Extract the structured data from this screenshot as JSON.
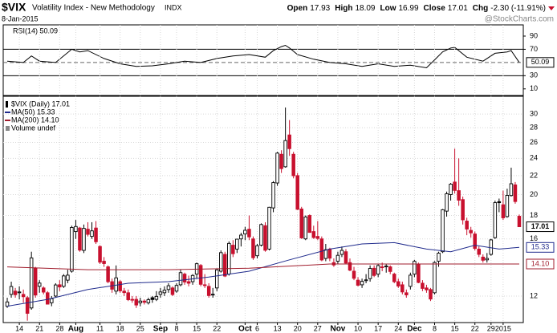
{
  "chart_data": {
    "type": "candlestick",
    "title": "$VIX",
    "subtitle": "Volatility Index - New Methodology",
    "exchange": "INDX",
    "date": "8-Jan-2015",
    "watermark": "@StockCharts.com",
    "quote": [
      {
        "label": "Open",
        "value": "17.93"
      },
      {
        "label": "High",
        "value": "18.09"
      },
      {
        "label": "Low",
        "value": "16.99"
      },
      {
        "label": "Close",
        "value": "17.01"
      },
      {
        "label": "Chg",
        "value": "-2.30 (-11.91%)"
      }
    ],
    "legend": [
      "$VIX (Daily) 17.01",
      "Volume undef"
    ],
    "last_label": "17.01",
    "grid": true,
    "log_scale": true,
    "up_color": "#000000",
    "down_color": "#c8102e",
    "xlim": [
      -1,
      128
    ],
    "xticks": [
      {
        "value": 3,
        "label": "14"
      },
      {
        "value": 8,
        "label": "21"
      },
      {
        "value": 13,
        "label": "28"
      },
      {
        "value": 17,
        "label": "Aug"
      },
      {
        "value": 23,
        "label": "11"
      },
      {
        "value": 28,
        "label": "18"
      },
      {
        "value": 33,
        "label": "25"
      },
      {
        "value": 38,
        "label": "Sep"
      },
      {
        "value": 42,
        "label": "8"
      },
      {
        "value": 47,
        "label": "15"
      },
      {
        "value": 52,
        "label": "22"
      },
      {
        "value": 59,
        "label": "Oct"
      },
      {
        "value": 62,
        "label": "6"
      },
      {
        "value": 67,
        "label": "13"
      },
      {
        "value": 72,
        "label": "20"
      },
      {
        "value": 77,
        "label": "27"
      },
      {
        "value": 82,
        "label": "Nov"
      },
      {
        "value": 87,
        "label": "10"
      },
      {
        "value": 92,
        "label": "17"
      },
      {
        "value": 97,
        "label": "24"
      },
      {
        "value": 101,
        "label": "Dec"
      },
      {
        "value": 106,
        "label": "8"
      },
      {
        "value": 111,
        "label": "15"
      },
      {
        "value": 116,
        "label": "22"
      },
      {
        "value": 120,
        "label": "29"
      },
      {
        "value": 123,
        "label": "2015"
      }
    ],
    "ylim": [
      10.5,
      32.8
    ],
    "yticks": [
      12,
      16,
      18,
      20,
      22,
      24,
      26,
      28,
      30
    ],
    "ohlc": [
      [
        11.4,
        11.9,
        11.3,
        11.65
      ],
      [
        12.1,
        12.9,
        11.9,
        12.59
      ],
      [
        12.3,
        12.5,
        11.9,
        12.08
      ],
      [
        12.2,
        12.6,
        11.8,
        12.25
      ],
      [
        12.1,
        12.4,
        11.6,
        11.96
      ],
      [
        11.9,
        12.0,
        10.6,
        11.0
      ],
      [
        11.3,
        15.0,
        11.2,
        14.54
      ],
      [
        13.8,
        13.9,
        11.9,
        12.06
      ],
      [
        12.6,
        13.0,
        12.2,
        12.81
      ],
      [
        12.5,
        12.6,
        12.1,
        12.24
      ],
      [
        12.2,
        12.3,
        11.5,
        11.52
      ],
      [
        11.6,
        12.0,
        11.4,
        11.84
      ],
      [
        12.0,
        12.8,
        11.9,
        12.69
      ],
      [
        12.7,
        13.0,
        12.3,
        12.56
      ],
      [
        12.6,
        13.4,
        12.5,
        13.28
      ],
      [
        13.0,
        13.7,
        12.8,
        13.33
      ],
      [
        13.6,
        17.1,
        13.5,
        16.95
      ],
      [
        16.6,
        17.6,
        16.0,
        17.03
      ],
      [
        16.9,
        17.0,
        15.0,
        15.12
      ],
      [
        15.1,
        17.2,
        14.9,
        16.87
      ],
      [
        16.8,
        17.4,
        16.2,
        16.37
      ],
      [
        16.2,
        17.4,
        16.0,
        16.66
      ],
      [
        16.9,
        17.5,
        15.6,
        15.77
      ],
      [
        15.4,
        15.5,
        14.1,
        14.23
      ],
      [
        14.3,
        14.6,
        13.9,
        14.13
      ],
      [
        13.9,
        14.0,
        12.8,
        12.9
      ],
      [
        12.9,
        13.1,
        12.2,
        12.42
      ],
      [
        12.3,
        14.0,
        12.1,
        13.15
      ],
      [
        12.9,
        13.0,
        12.2,
        12.32
      ],
      [
        12.3,
        12.5,
        12.0,
        12.21
      ],
      [
        12.2,
        12.4,
        11.7,
        11.78
      ],
      [
        11.8,
        12.0,
        11.6,
        11.76
      ],
      [
        11.8,
        12.0,
        11.3,
        11.47
      ],
      [
        11.6,
        11.9,
        11.4,
        11.7
      ],
      [
        11.7,
        11.8,
        11.5,
        11.63
      ],
      [
        11.6,
        11.9,
        11.5,
        11.78
      ],
      [
        11.9,
        12.0,
        11.6,
        11.79
      ],
      [
        11.8,
        12.3,
        11.7,
        11.98
      ],
      [
        12.1,
        12.5,
        11.9,
        12.25
      ],
      [
        12.2,
        12.6,
        12.0,
        12.36
      ],
      [
        12.4,
        12.8,
        12.2,
        12.64
      ],
      [
        12.5,
        12.6,
        12.0,
        12.09
      ],
      [
        12.3,
        12.8,
        12.2,
        12.66
      ],
      [
        12.7,
        13.7,
        12.6,
        13.5
      ],
      [
        13.4,
        13.5,
        12.7,
        12.88
      ],
      [
        12.9,
        13.3,
        12.6,
        12.8
      ],
      [
        12.9,
        13.4,
        12.7,
        13.31
      ],
      [
        13.4,
        14.2,
        13.1,
        14.12
      ],
      [
        14.0,
        14.1,
        12.6,
        12.73
      ],
      [
        12.7,
        13.4,
        12.5,
        12.65
      ],
      [
        12.6,
        12.8,
        11.9,
        12.03
      ],
      [
        12.1,
        12.5,
        11.9,
        12.11
      ],
      [
        12.5,
        13.8,
        12.3,
        13.69
      ],
      [
        13.6,
        15.1,
        13.5,
        14.93
      ],
      [
        14.8,
        15.0,
        13.2,
        13.27
      ],
      [
        13.4,
        15.8,
        13.3,
        15.64
      ],
      [
        15.5,
        15.9,
        14.6,
        14.85
      ],
      [
        15.2,
        16.0,
        14.9,
        15.98
      ],
      [
        16.0,
        16.5,
        15.4,
        16.31
      ],
      [
        16.4,
        17.0,
        15.9,
        16.71
      ],
      [
        16.8,
        18.0,
        15.9,
        16.16
      ],
      [
        16.0,
        16.2,
        14.4,
        14.55
      ],
      [
        14.7,
        15.6,
        14.5,
        15.46
      ],
      [
        15.5,
        17.3,
        15.4,
        17.2
      ],
      [
        17.1,
        17.4,
        15.0,
        15.11
      ],
      [
        15.2,
        18.8,
        15.1,
        18.76
      ],
      [
        18.7,
        21.4,
        18.3,
        21.24
      ],
      [
        21.2,
        24.8,
        20.9,
        24.64
      ],
      [
        24.5,
        25.0,
        22.3,
        22.79
      ],
      [
        23.0,
        31.0,
        22.9,
        26.25
      ],
      [
        27.0,
        29.1,
        24.3,
        25.2
      ],
      [
        24.5,
        24.8,
        21.7,
        21.99
      ],
      [
        22.0,
        22.3,
        18.5,
        18.57
      ],
      [
        18.6,
        18.8,
        16.0,
        16.08
      ],
      [
        16.0,
        18.0,
        15.9,
        17.87
      ],
      [
        18.0,
        18.1,
        16.5,
        16.53
      ],
      [
        16.6,
        17.1,
        16.0,
        16.11
      ],
      [
        16.2,
        17.5,
        15.9,
        16.04
      ],
      [
        16.0,
        16.2,
        14.3,
        14.39
      ],
      [
        14.5,
        15.6,
        14.3,
        15.15
      ],
      [
        15.2,
        15.3,
        14.3,
        14.52
      ],
      [
        14.2,
        14.5,
        13.9,
        14.03
      ],
      [
        14.3,
        15.0,
        14.1,
        14.73
      ],
      [
        14.8,
        15.4,
        14.6,
        15.1
      ],
      [
        15.0,
        15.2,
        14.1,
        14.17
      ],
      [
        14.2,
        14.5,
        13.6,
        13.67
      ],
      [
        13.6,
        13.9,
        13.0,
        13.12
      ],
      [
        13.0,
        13.2,
        12.6,
        12.67
      ],
      [
        12.7,
        13.1,
        12.5,
        12.92
      ],
      [
        13.0,
        13.4,
        12.8,
        13.02
      ],
      [
        13.1,
        14.0,
        12.9,
        13.79
      ],
      [
        13.8,
        14.0,
        13.2,
        13.31
      ],
      [
        13.4,
        14.1,
        13.2,
        13.99
      ],
      [
        13.9,
        14.2,
        13.6,
        13.86
      ],
      [
        13.9,
        14.1,
        13.5,
        13.96
      ],
      [
        13.9,
        14.0,
        13.4,
        13.58
      ],
      [
        13.4,
        13.5,
        12.8,
        12.9
      ],
      [
        12.9,
        13.1,
        12.5,
        12.62
      ],
      [
        12.7,
        12.9,
        12.1,
        12.25
      ],
      [
        12.2,
        12.4,
        11.9,
        12.07
      ],
      [
        12.6,
        13.5,
        12.4,
        13.33
      ],
      [
        13.4,
        14.4,
        13.2,
        14.29
      ],
      [
        14.1,
        14.2,
        12.8,
        12.85
      ],
      [
        12.8,
        13.0,
        12.3,
        12.47
      ],
      [
        12.5,
        12.7,
        12.2,
        12.38
      ],
      [
        12.4,
        12.5,
        11.7,
        11.82
      ],
      [
        12.2,
        14.3,
        12.1,
        14.21
      ],
      [
        14.3,
        15.0,
        13.9,
        14.89
      ],
      [
        15.0,
        18.6,
        14.9,
        18.53
      ],
      [
        18.4,
        20.3,
        17.9,
        20.08
      ],
      [
        20.0,
        21.2,
        19.4,
        21.08
      ],
      [
        21.3,
        25.2,
        20.1,
        20.42
      ],
      [
        20.4,
        24.0,
        18.9,
        19.44
      ],
      [
        19.5,
        19.8,
        17.2,
        17.61
      ],
      [
        17.5,
        17.8,
        16.3,
        16.81
      ],
      [
        16.7,
        17.0,
        16.1,
        16.49
      ],
      [
        16.4,
        16.6,
        15.1,
        15.25
      ],
      [
        15.2,
        15.4,
        14.6,
        14.8
      ],
      [
        14.6,
        14.8,
        14.2,
        14.37
      ],
      [
        14.4,
        14.9,
        14.2,
        14.5
      ],
      [
        14.8,
        16.0,
        14.7,
        15.92
      ],
      [
        16.1,
        19.4,
        16.0,
        19.2
      ],
      [
        19.3,
        19.6,
        18.3,
        19.2
      ],
      [
        19.0,
        20.4,
        17.6,
        17.79
      ],
      [
        17.9,
        20.6,
        17.8,
        19.92
      ],
      [
        19.9,
        22.9,
        19.8,
        21.12
      ],
      [
        21.0,
        21.3,
        19.1,
        19.31
      ],
      [
        17.93,
        18.09,
        16.99,
        17.01
      ]
    ],
    "series": [
      {
        "name": "MA(50) 15.33",
        "last_label": "15.33",
        "color": "#1f2a8c",
        "x": [
          0,
          10,
          20,
          30,
          40,
          50,
          60,
          70,
          80,
          88,
          96,
          104,
          110,
          116,
          122,
          127
        ],
        "values": [
          11.4,
          11.8,
          12.4,
          12.8,
          12.9,
          13.2,
          13.6,
          14.4,
          15.2,
          15.6,
          15.7,
          15.2,
          15.0,
          15.5,
          15.2,
          15.33
        ]
      },
      {
        "name": "MA(200) 14.10",
        "last_label": "14.10",
        "color": "#a01c2c",
        "x": [
          0,
          20,
          40,
          60,
          80,
          100,
          127
        ],
        "values": [
          13.9,
          13.7,
          13.7,
          13.8,
          14.1,
          14.1,
          14.1
        ]
      }
    ],
    "rsi": {
      "name": "RSI(14) 50.09",
      "last_label": "50.09",
      "color": "#000000",
      "ylim": [
        0,
        107
      ],
      "yticks": [
        90,
        70,
        30,
        10
      ],
      "bands": [
        70,
        30
      ],
      "center": 50,
      "x": [
        0,
        4,
        6,
        8,
        12,
        16,
        18,
        20,
        24,
        28,
        32,
        36,
        40,
        44,
        48,
        52,
        56,
        60,
        64,
        66,
        68,
        69,
        70,
        72,
        76,
        80,
        84,
        88,
        92,
        96,
        100,
        104,
        106,
        108,
        110,
        111,
        112,
        114,
        118,
        121,
        124,
        125,
        127
      ],
      "values": [
        52,
        50,
        60,
        52,
        50,
        70,
        66,
        68,
        56,
        48,
        44,
        45,
        48,
        52,
        50,
        56,
        60,
        62,
        58,
        68,
        74,
        76,
        72,
        62,
        55,
        50,
        48,
        44,
        48,
        44,
        46,
        42,
        54,
        66,
        72,
        73,
        68,
        58,
        52,
        64,
        66,
        68,
        50.09
      ]
    }
  }
}
